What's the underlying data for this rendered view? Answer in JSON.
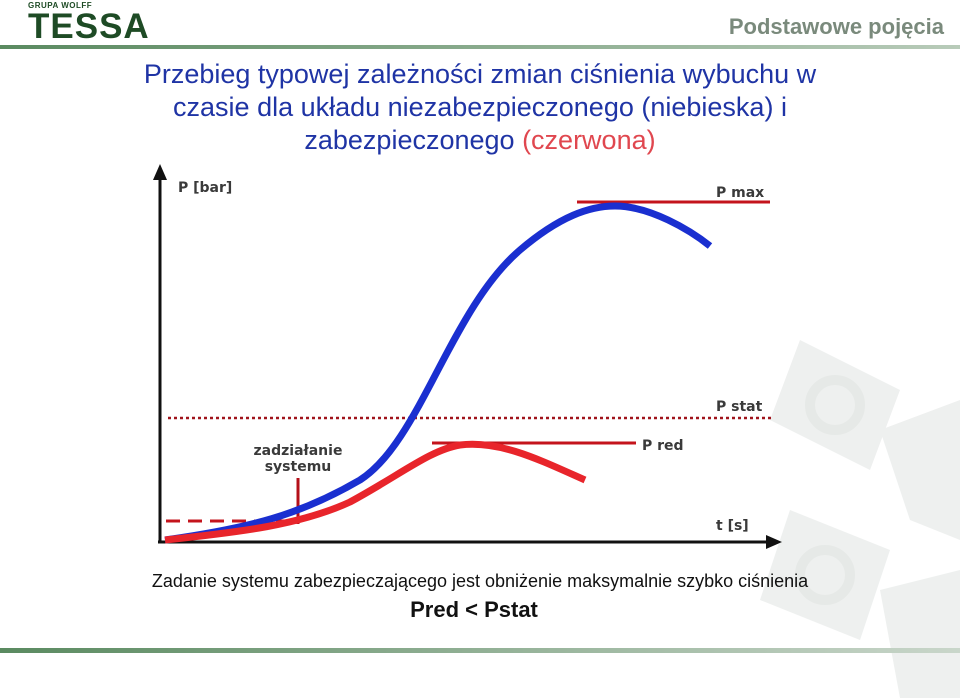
{
  "header": {
    "logo_top": "GRUPA WOLFF",
    "logo_main": "TESSA",
    "section_title": "Podstawowe pojęcia"
  },
  "title": {
    "line1": "Przebieg typowej zależności zmian ciśnienia wybuchu w",
    "line2": "czasie dla układu niezabezpieczonego",
    "line2_blue": "(niebieska)",
    "line2_end": "i",
    "line3": "zabezpieczonego",
    "line3_red": "(czerwona)"
  },
  "diagram": {
    "y_axis_label": "P [bar]",
    "x_axis_label": "t [s]",
    "pmax_label": "P max",
    "pstat_label": "P stat",
    "pred_label": "P red",
    "activation_line1": "zadziałanie",
    "activation_line2": "systemu",
    "colors": {
      "unprotected": "#1a2fd0",
      "protected": "#e8252b",
      "marker": "#b4101a",
      "pstat_line": "#a0141c",
      "label_text": "#3a3a3a"
    }
  },
  "caption": "Zadanie systemu zabezpieczającego jest obniżenie maksymalnie szybko ciśnienia",
  "formula": "Pred < Pstat"
}
